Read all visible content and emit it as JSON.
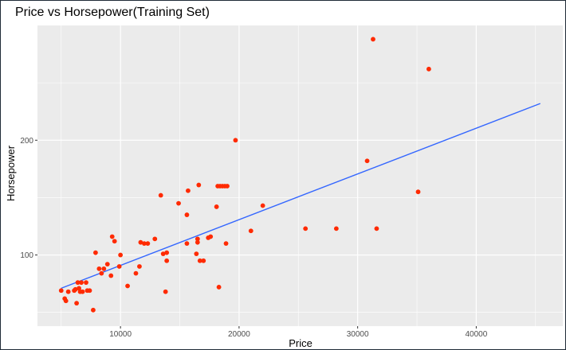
{
  "chart_data": {
    "type": "scatter",
    "title": "Price vs Horsepower(Training Set)",
    "xlabel": "Price",
    "ylabel": "Horsepower",
    "xlim": [
      3000,
      47300
    ],
    "ylim": [
      38,
      300
    ],
    "x_ticks": [
      10000,
      20000,
      30000,
      40000
    ],
    "x_tick_labels": [
      "10000",
      "20000",
      "30000",
      "40000"
    ],
    "y_ticks": [
      100,
      200
    ],
    "y_tick_labels": [
      "100",
      "200"
    ],
    "grid": true,
    "legend": "none",
    "colors": {
      "panel_background": "#ebebeb",
      "grid": "#ffffff",
      "points": "#ff2a00",
      "fit_line": "#3366ff"
    },
    "points": [
      {
        "x": 5000,
        "y": 69
      },
      {
        "x": 5300,
        "y": 62
      },
      {
        "x": 5400,
        "y": 60
      },
      {
        "x": 5600,
        "y": 68
      },
      {
        "x": 6100,
        "y": 69
      },
      {
        "x": 6200,
        "y": 70
      },
      {
        "x": 6300,
        "y": 58
      },
      {
        "x": 6400,
        "y": 76
      },
      {
        "x": 6500,
        "y": 71
      },
      {
        "x": 6600,
        "y": 68
      },
      {
        "x": 6700,
        "y": 76
      },
      {
        "x": 6800,
        "y": 68
      },
      {
        "x": 7100,
        "y": 76
      },
      {
        "x": 7200,
        "y": 69
      },
      {
        "x": 7400,
        "y": 69
      },
      {
        "x": 7700,
        "y": 52
      },
      {
        "x": 7900,
        "y": 102
      },
      {
        "x": 8200,
        "y": 88
      },
      {
        "x": 8400,
        "y": 84
      },
      {
        "x": 8600,
        "y": 88
      },
      {
        "x": 8900,
        "y": 92
      },
      {
        "x": 9200,
        "y": 82
      },
      {
        "x": 9300,
        "y": 116
      },
      {
        "x": 9500,
        "y": 112
      },
      {
        "x": 9900,
        "y": 90
      },
      {
        "x": 10000,
        "y": 100
      },
      {
        "x": 10600,
        "y": 73
      },
      {
        "x": 11300,
        "y": 84
      },
      {
        "x": 11600,
        "y": 90
      },
      {
        "x": 11700,
        "y": 111
      },
      {
        "x": 12000,
        "y": 110
      },
      {
        "x": 12300,
        "y": 110
      },
      {
        "x": 12900,
        "y": 114
      },
      {
        "x": 13400,
        "y": 152
      },
      {
        "x": 13600,
        "y": 101
      },
      {
        "x": 13800,
        "y": 68
      },
      {
        "x": 13900,
        "y": 95
      },
      {
        "x": 13900,
        "y": 102
      },
      {
        "x": 14900,
        "y": 145
      },
      {
        "x": 15600,
        "y": 110
      },
      {
        "x": 15600,
        "y": 135
      },
      {
        "x": 15700,
        "y": 156
      },
      {
        "x": 16400,
        "y": 101
      },
      {
        "x": 16500,
        "y": 111
      },
      {
        "x": 16500,
        "y": 114
      },
      {
        "x": 16600,
        "y": 161
      },
      {
        "x": 16700,
        "y": 95
      },
      {
        "x": 17000,
        "y": 95
      },
      {
        "x": 17400,
        "y": 115
      },
      {
        "x": 17600,
        "y": 116
      },
      {
        "x": 18100,
        "y": 142
      },
      {
        "x": 18200,
        "y": 160
      },
      {
        "x": 18300,
        "y": 72
      },
      {
        "x": 18400,
        "y": 160
      },
      {
        "x": 18600,
        "y": 160
      },
      {
        "x": 18800,
        "y": 160
      },
      {
        "x": 18900,
        "y": 110
      },
      {
        "x": 19000,
        "y": 160
      },
      {
        "x": 19700,
        "y": 200
      },
      {
        "x": 21000,
        "y": 121
      },
      {
        "x": 22000,
        "y": 143
      },
      {
        "x": 25600,
        "y": 123
      },
      {
        "x": 28200,
        "y": 123
      },
      {
        "x": 30800,
        "y": 182
      },
      {
        "x": 31300,
        "y": 288
      },
      {
        "x": 31600,
        "y": 123
      },
      {
        "x": 35100,
        "y": 155
      },
      {
        "x": 36000,
        "y": 262
      }
    ],
    "fit_line": {
      "x": [
        5000,
        45400
      ],
      "y": [
        71,
        232
      ]
    }
  }
}
